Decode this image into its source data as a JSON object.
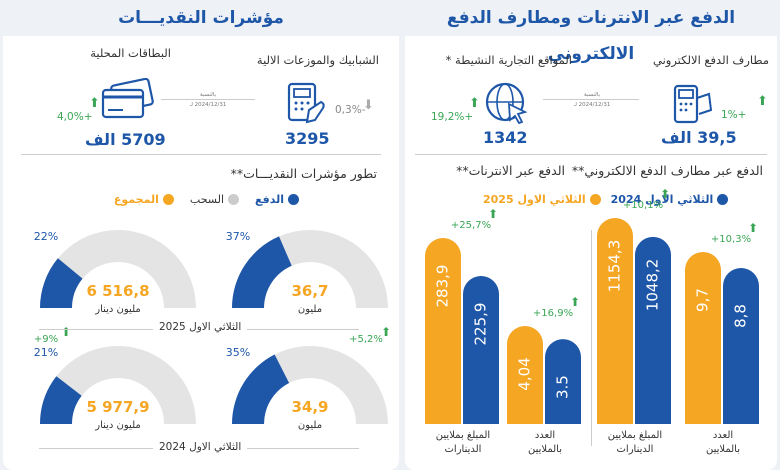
{
  "colors": {
    "blue": "#1e56a8",
    "orange": "#f5a623",
    "gray": "#e4e4e4",
    "green": "#3aa655",
    "title": "#1e56a8"
  },
  "left": {
    "title": "مؤشرات النقديـــات",
    "atm": {
      "label": "الشبابيك والموزعات الالية",
      "value": "3295",
      "change": "-0,3%"
    },
    "cards": {
      "label": "البطاقات المحلية",
      "value": "5709 الف",
      "change": "+4,0%"
    },
    "compare_note": "بالنسبة",
    "compare_date": "2024/12/31 لـ",
    "evolution_title": "تطور مؤشرات النقديـــات**",
    "legend": {
      "total": "المجموع",
      "withdraw": "السحب",
      "payment": "الدفع"
    },
    "period_2025": "الثلاثي الاول 2025",
    "period_2024": "الثلاثي الاول 2024",
    "gauges": [
      {
        "id": "amount_2025",
        "pct": 22,
        "pct_label": "22%",
        "value": "6 516,8",
        "unit": "مليون دينار",
        "change": ""
      },
      {
        "id": "count_2025",
        "pct": 37,
        "pct_label": "37%",
        "value": "36,7",
        "unit": "مليون",
        "change": ""
      },
      {
        "id": "amount_2024",
        "pct": 21,
        "pct_label": "21%",
        "value": "5 977,9",
        "unit": "مليون دينار",
        "change": "+9%"
      },
      {
        "id": "count_2024",
        "pct": 35,
        "pct_label": "35%",
        "value": "34,9",
        "unit": "مليون",
        "change": "+5,2%"
      }
    ]
  },
  "right": {
    "title": "الدفع عبر الانترنات ومطارف الدفع الالكتروني",
    "websites": {
      "label": "المواقع التجارية النشيطة *",
      "value": "1342",
      "change": "+19,2%"
    },
    "terminals": {
      "label": "مطارف الدفع الالكتروني",
      "value": "39,5 الف",
      "change": "+1%"
    },
    "compare_note": "بالنسبة",
    "compare_date": "2024/12/31 لـ",
    "internet_title": "الدفع عبر الانترنات**",
    "tpe_title": "الدفع عبر مطارف الدفع الالكتروني**",
    "legend": {
      "q1_2024": "الثلاثي الاول 2024",
      "q1_2025": "الثلاثي الاول 2025"
    }
  },
  "chart_data": {
    "type": "bar",
    "series": [
      {
        "name": "الثلاثي الاول 2025"
      },
      {
        "name": "الثلاثي الاول 2024"
      }
    ],
    "groups": [
      {
        "panel": "internet",
        "label": "المبلغ بملايين الدينارات",
        "values": {
          "2025": 283.9,
          "2024": 225.9
        },
        "labels": [
          "283,9",
          "225,9"
        ],
        "change": "+25,7%"
      },
      {
        "panel": "internet",
        "label": "العدد بالملايين",
        "values": {
          "2025": 4.04,
          "2024": 3.5
        },
        "labels": [
          "4,04",
          "3.5"
        ],
        "change": "+16,9%"
      },
      {
        "panel": "tpe",
        "label": "المبلغ بملايين الدينارات",
        "values": {
          "2025": 1154.3,
          "2024": 1048.2
        },
        "labels": [
          "1154,3",
          "1048,2"
        ],
        "change": "+10,1%"
      },
      {
        "panel": "tpe",
        "label": "العدد بالملايين",
        "values": {
          "2025": 9.7,
          "2024": 8.8
        },
        "labels": [
          "9,7",
          "8,8"
        ],
        "change": "+10,3%"
      }
    ]
  }
}
